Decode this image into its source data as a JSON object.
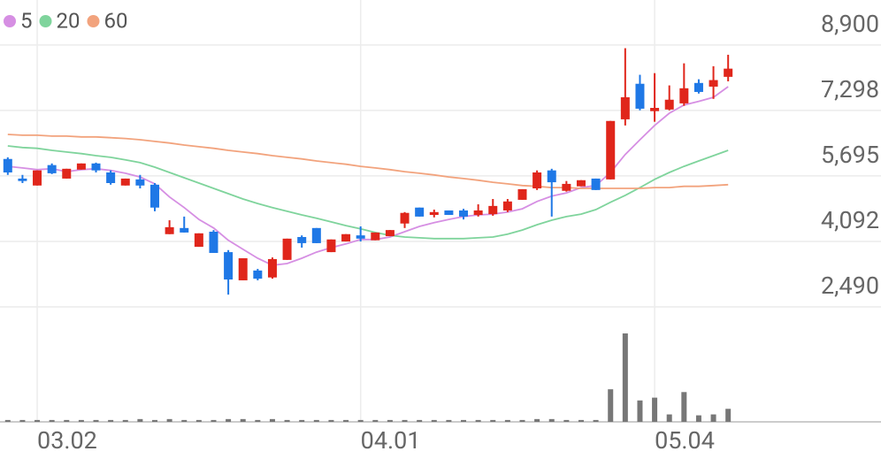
{
  "chart_data": {
    "type": "candlestick",
    "categories": [
      null,
      null,
      "03.02",
      null,
      null,
      null,
      null,
      null,
      null,
      null,
      null,
      null,
      null,
      null,
      null,
      null,
      null,
      null,
      null,
      null,
      null,
      null,
      null,
      null,
      "04.01",
      null,
      null,
      null,
      null,
      null,
      null,
      null,
      null,
      null,
      null,
      null,
      null,
      null,
      null,
      null,
      null,
      null,
      null,
      null,
      "05.04",
      null,
      null,
      null,
      null,
      null
    ],
    "open": [
      6110,
      5630,
      5460,
      5960,
      5630,
      5850,
      6000,
      5780,
      5460,
      5610,
      5480,
      4270,
      4420,
      3960,
      4330,
      3830,
      3140,
      3380,
      3210,
      3640,
      4200,
      4420,
      3830,
      4090,
      4240,
      4120,
      4220,
      4530,
      4920,
      4740,
      4850,
      4850,
      4740,
      4760,
      4850,
      5110,
      5390,
      5830,
      5330,
      5440,
      5630,
      5610,
      7080,
      7950,
      7280,
      7320,
      7470,
      7970,
      7880,
      8120
    ],
    "high": [
      6150,
      5720,
      5830,
      6000,
      5870,
      6000,
      6020,
      5830,
      5630,
      5720,
      5520,
      4610,
      4700,
      4290,
      4370,
      3880,
      3680,
      3420,
      3700,
      4160,
      4240,
      4420,
      4140,
      4270,
      4460,
      4310,
      4370,
      4810,
      4920,
      4870,
      4850,
      4890,
      5000,
      5130,
      5130,
      5370,
      5830,
      5870,
      5570,
      5590,
      5630,
      7040,
      8820,
      8170,
      8210,
      7910,
      8450,
      8060,
      8380,
      8660
    ],
    "low": [
      5720,
      5520,
      5460,
      5740,
      5630,
      5850,
      5780,
      5480,
      5460,
      5390,
      4830,
      4270,
      4310,
      3960,
      3810,
      2790,
      3140,
      3140,
      3180,
      3640,
      3940,
      4050,
      3830,
      4090,
      4090,
      4120,
      4220,
      4420,
      4700,
      4680,
      4740,
      4630,
      4700,
      4720,
      4810,
      5110,
      5350,
      4700,
      5310,
      5440,
      5350,
      5610,
      6930,
      7300,
      7020,
      7300,
      7410,
      7710,
      7580,
      8010
    ],
    "close": [
      5780,
      5570,
      5830,
      5760,
      5870,
      6000,
      5830,
      5520,
      5630,
      5460,
      4920,
      4440,
      4310,
      4290,
      3810,
      3160,
      3680,
      3180,
      3660,
      4160,
      4050,
      4050,
      4140,
      4270,
      4160,
      4310,
      4370,
      4790,
      4700,
      4810,
      4740,
      4700,
      4850,
      4960,
      5070,
      5370,
      5780,
      5540,
      5500,
      5590,
      5350,
      7040,
      7620,
      7340,
      7360,
      7560,
      7840,
      7750,
      8040,
      8320
    ],
    "volume": [
      2,
      2,
      2,
      2,
      2,
      2,
      2,
      2,
      2,
      3,
      2,
      3,
      2,
      2,
      2,
      3,
      3,
      2,
      3,
      2,
      2,
      2,
      2,
      2,
      2,
      2,
      2,
      2,
      2,
      2,
      2,
      2,
      2,
      2,
      2,
      2,
      3,
      3,
      2,
      2,
      2,
      35,
      95,
      23,
      26,
      8,
      32,
      7,
      8,
      14
    ],
    "up_color": "#e0261b",
    "down_color": "#1f78e6",
    "volume_color": "#777777",
    "series": [
      {
        "name": "5",
        "color": "#d68fe3",
        "values": [
          5930,
          5890,
          5850,
          5870,
          5800,
          5850,
          5870,
          5830,
          5760,
          5670,
          5500,
          5180,
          4920,
          4630,
          4420,
          4120,
          3900,
          3680,
          3510,
          3550,
          3680,
          3830,
          3940,
          4030,
          4140,
          4140,
          4200,
          4330,
          4460,
          4550,
          4630,
          4700,
          4740,
          4760,
          4810,
          4890,
          5070,
          5200,
          5280,
          5410,
          5460,
          5780,
          6220,
          6580,
          6930,
          7230,
          7430,
          7520,
          7620,
          7880
        ]
      },
      {
        "name": "20",
        "color": "#7fd49c",
        "values": [
          6430,
          6390,
          6370,
          6320,
          6280,
          6240,
          6190,
          6150,
          6090,
          6020,
          5910,
          5780,
          5650,
          5520,
          5390,
          5260,
          5130,
          5020,
          4920,
          4830,
          4740,
          4660,
          4570,
          4480,
          4400,
          4310,
          4240,
          4200,
          4180,
          4160,
          4160,
          4160,
          4180,
          4200,
          4270,
          4370,
          4500,
          4610,
          4700,
          4760,
          4870,
          5050,
          5220,
          5410,
          5610,
          5780,
          5930,
          6060,
          6190,
          6320
        ]
      },
      {
        "name": "60",
        "color": "#f2a37d",
        "values": [
          6710,
          6690,
          6690,
          6670,
          6670,
          6650,
          6650,
          6630,
          6610,
          6580,
          6540,
          6500,
          6450,
          6410,
          6370,
          6320,
          6280,
          6240,
          6190,
          6150,
          6110,
          6060,
          6020,
          5980,
          5930,
          5890,
          5850,
          5800,
          5760,
          5720,
          5670,
          5630,
          5590,
          5540,
          5500,
          5460,
          5440,
          5410,
          5410,
          5390,
          5390,
          5390,
          5390,
          5390,
          5410,
          5410,
          5440,
          5440,
          5460,
          5480
        ]
      }
    ],
    "ylim": [
      2490,
      10000
    ],
    "yticks": [
      {
        "value": 8900,
        "label": "8,900"
      },
      {
        "value": 7298,
        "label": "7,298"
      },
      {
        "value": 5695,
        "label": "5,695"
      },
      {
        "value": 4092,
        "label": "4,092"
      },
      {
        "value": 2490,
        "label": "2,490"
      }
    ],
    "grid": true
  }
}
